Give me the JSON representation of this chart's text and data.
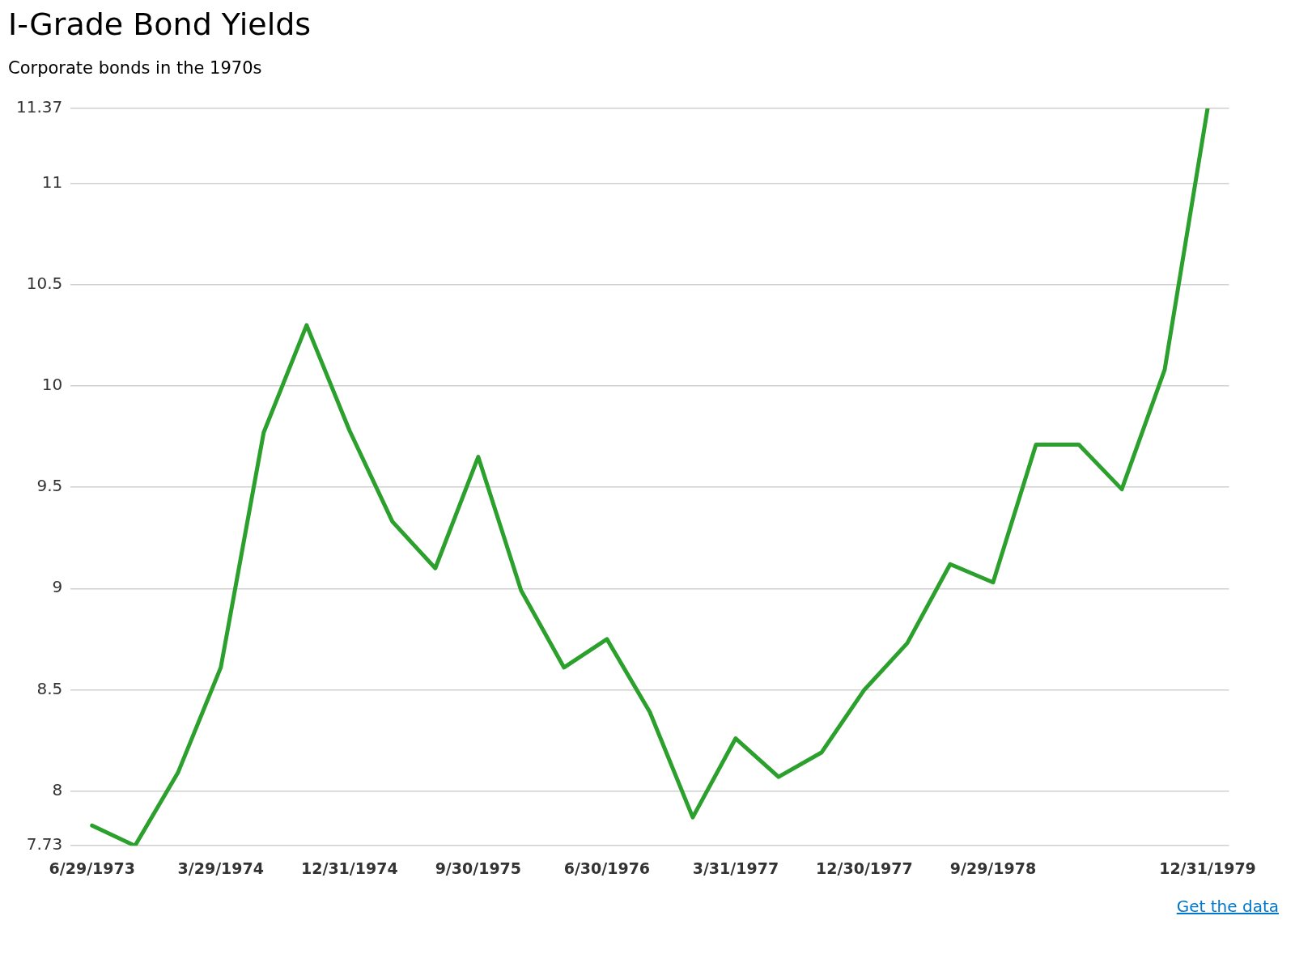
{
  "chart_data": {
    "type": "line",
    "title": "I-Grade Bond Yields",
    "subtitle": "Corporate bonds in the 1970s",
    "categories": [
      "6/29/1973",
      null,
      null,
      "3/29/1974",
      null,
      null,
      "12/31/1974",
      null,
      null,
      "9/30/1975",
      null,
      null,
      "6/30/1976",
      null,
      null,
      "3/31/1977",
      null,
      null,
      "12/30/1977",
      null,
      null,
      "9/29/1978",
      null,
      null,
      null,
      null,
      "12/31/1979"
    ],
    "series": [
      {
        "color": "#2ca02c",
        "values": [
          7.83,
          7.73,
          8.09,
          8.61,
          9.77,
          10.3,
          9.78,
          9.33,
          9.1,
          9.65,
          8.99,
          8.61,
          8.75,
          8.39,
          7.87,
          8.26,
          8.07,
          8.19,
          8.5,
          8.73,
          9.12,
          9.03,
          9.71,
          9.71,
          9.49,
          10.08,
          11.37
        ]
      }
    ],
    "ylim": [
      7.73,
      11.37
    ],
    "yticks": [
      7.73,
      8,
      8.5,
      9,
      9.5,
      10,
      10.5,
      11,
      11.37
    ],
    "grid": "y",
    "legend": false,
    "marker": "none",
    "line_style": "solid",
    "annotations": [
      "Get the data"
    ]
  }
}
